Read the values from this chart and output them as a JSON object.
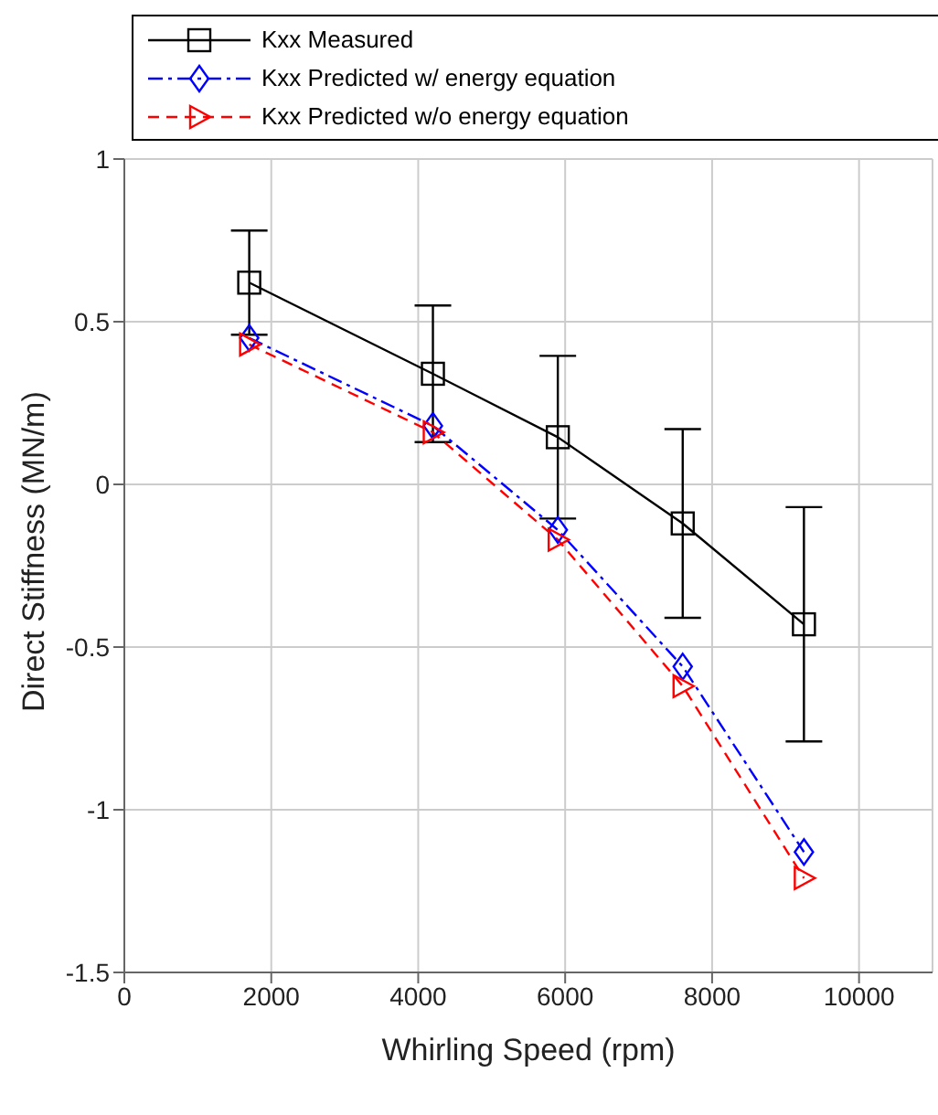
{
  "chart_data": {
    "type": "line",
    "xlabel": "Whirling Speed (rpm)",
    "ylabel": "Direct Stiffness (MN/m)",
    "x": [
      1700,
      4200,
      5900,
      7600,
      9250
    ],
    "series": [
      {
        "name": "Kxx Measured",
        "color": "#000000",
        "values": [
          0.62,
          0.34,
          0.145,
          -0.12,
          -0.43
        ],
        "errors": [
          0.16,
          0.21,
          0.25,
          0.29,
          0.36
        ],
        "marker": "square",
        "line_style": "solid"
      },
      {
        "name": "Kxx Predicted w/ energy equation",
        "color": "#0000ff",
        "values": [
          0.45,
          0.18,
          -0.14,
          -0.56,
          -1.13
        ],
        "marker": "diamond",
        "line_style": "dashdot"
      },
      {
        "name": "Kxx Predicted w/o energy equation",
        "color": "#ff0000",
        "values": [
          0.43,
          0.16,
          -0.17,
          -0.62,
          -1.21
        ],
        "marker": "triangle",
        "line_style": "dashed"
      }
    ],
    "xlim": [
      0,
      11000
    ],
    "xticks": [
      0,
      2000,
      4000,
      6000,
      8000,
      10000
    ],
    "ylim": [
      -1.5,
      1
    ],
    "yticks": [
      -1.5,
      -1,
      -0.5,
      0,
      0.5,
      1
    ],
    "grid": true,
    "legend": "top"
  }
}
